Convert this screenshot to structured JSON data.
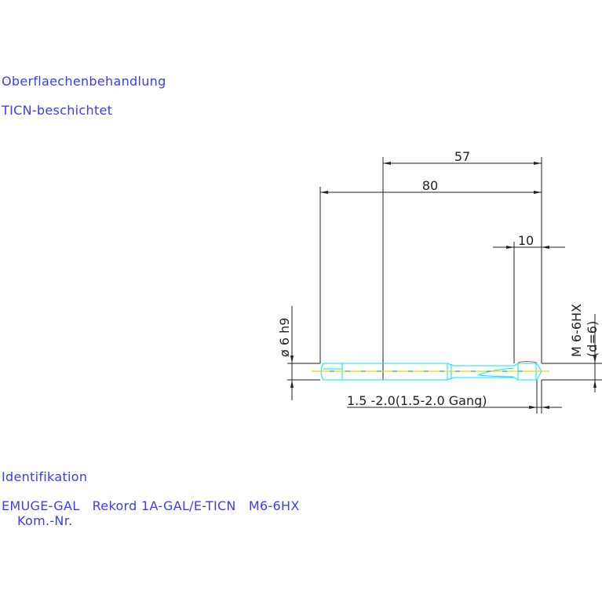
{
  "labels": {
    "surface_heading": "Oberflaechenbehandlung",
    "surface_value": "TICN-beschichtet",
    "id_heading": "Identifikation",
    "id_value": "EMUGE-GAL   Rekord 1A-GAL/E-TICN   M6-6HX",
    "kom_nr": "Kom.-Nr."
  },
  "dimensions": {
    "length_57": "57",
    "length_80": "80",
    "length_10": "10",
    "diameter": "ø 6 h9",
    "thread": "M 6-6HX",
    "thread_d": "(d=6)",
    "chamfer": "1.5 -2.0(1.5-2.0 Gang)"
  },
  "colors": {
    "text": "#3b3bff",
    "tool_outline": "#00e5ff",
    "centerline": "#e8d800",
    "tip": "#ff4040",
    "dim": "#222222"
  }
}
